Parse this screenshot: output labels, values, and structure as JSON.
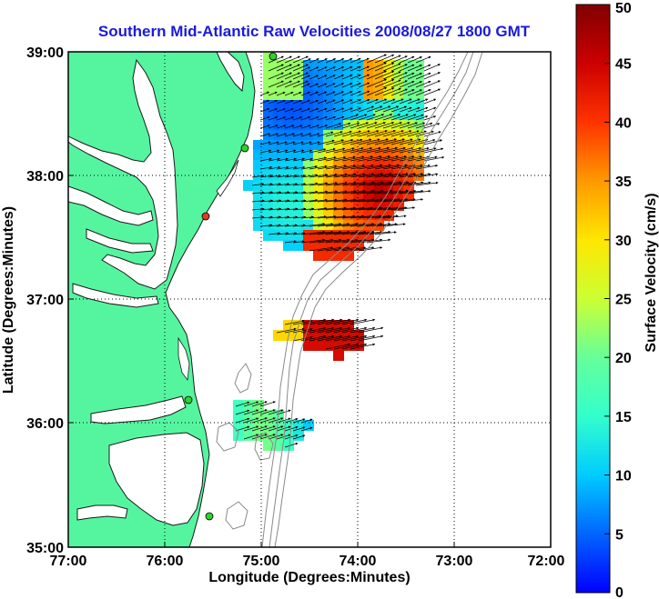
{
  "title": "Southern Mid-Atlantic Raw Velocities 2008/08/27 1800 GMT",
  "chart_data": {
    "type": "map",
    "xlabel": "Longitude (Degrees:Minutes)",
    "ylabel": "Latitude (Degrees:Minutes)",
    "x_ticks": [
      "77:00",
      "76:00",
      "75:00",
      "74:00",
      "73:00",
      "72:00"
    ],
    "y_ticks": [
      "39:00",
      "38:00",
      "37:00",
      "36:00",
      "35:00"
    ],
    "xlim": [
      -77,
      -72
    ],
    "ylim": [
      35,
      39
    ],
    "grid": "dotted",
    "colorbar": {
      "label": "Surface Velocity (cm/s)",
      "range": [
        0,
        50
      ],
      "ticks": [
        "0",
        "5",
        "10",
        "15",
        "20",
        "25",
        "30",
        "35",
        "40",
        "45",
        "50"
      ],
      "colormap": "jet"
    },
    "colors": {
      "land": "#55f5a0",
      "water_lines": "#1a1a1a",
      "bathymetry": "#8a8a8a",
      "grid": "#000000",
      "title": "#1a1adb",
      "station_green": "#2fd12f",
      "station_red": "#e03b1f"
    }
  }
}
